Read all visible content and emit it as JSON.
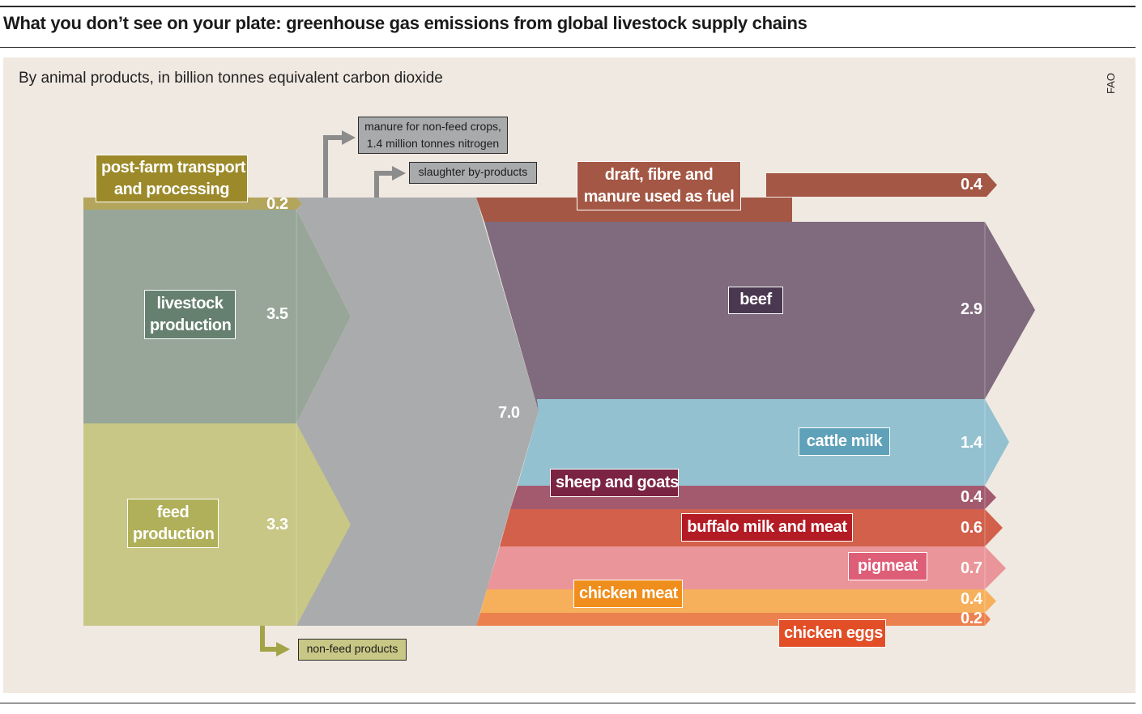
{
  "header": {
    "title": "What you don’t see on your plate: greenhouse gas emissions from global livestock supply chains"
  },
  "chart": {
    "subtitle": "By animal products, in billion tonnes equivalent carbon dioxide",
    "source": "FAO"
  },
  "diagram": {
    "inputs": [
      {
        "label_line1": "post-farm transport",
        "label_line2": "and processing",
        "value": "0.2"
      },
      {
        "label_line1": "livestock",
        "label_line2": "production",
        "value": "3.5"
      },
      {
        "label_line1": "feed",
        "label_line2": "production",
        "value": "3.3"
      }
    ],
    "total": "7.0",
    "notes": {
      "manure_line1": "manure for non-feed crops,",
      "manure_line2": "1.4 million tonnes nitrogen",
      "slaughter": "slaughter by-products",
      "non_feed": "non-feed products"
    },
    "outputs": [
      {
        "label_line1": "draft, fibre and",
        "label_line2": "manure used as fuel",
        "value": "0.4"
      },
      {
        "label": "beef",
        "value": "2.9"
      },
      {
        "label": "cattle milk",
        "value": "1.4"
      },
      {
        "label": "sheep and goats",
        "value": "0.4"
      },
      {
        "label": "buffalo milk and meat",
        "value": "0.6"
      },
      {
        "label": "pigmeat",
        "value": "0.7"
      },
      {
        "label": "chicken meat",
        "value": "0.4"
      },
      {
        "label": "chicken eggs",
        "value": "0.2"
      }
    ]
  },
  "colors": {
    "panel_bg": "#f0e9e1",
    "transport": "#9c8a2a",
    "livestock": "#97a698",
    "livestock_label": "#66806f",
    "feed": "#c8c785",
    "feed_label": "#b0b05a",
    "hub": "#aaabad",
    "draft": "#a35744",
    "beef": "#806a7d",
    "beef_label": "#4a3850",
    "cattle_milk": "#94c1d0",
    "cattle_milk_label": "#5ea1b8",
    "sheep_goats": "#a35a6e",
    "sheep_goats_label": "#7b2342",
    "buffalo": "#d2604a",
    "buffalo_label": "#b41c25",
    "pigmeat": "#ea9599",
    "pigmeat_label": "#de5e78",
    "chicken_meat": "#f6b05c",
    "chicken_meat_label": "#ef8e1c",
    "chicken_eggs": "#ec8150",
    "chicken_eggs_label": "#e24e26"
  }
}
